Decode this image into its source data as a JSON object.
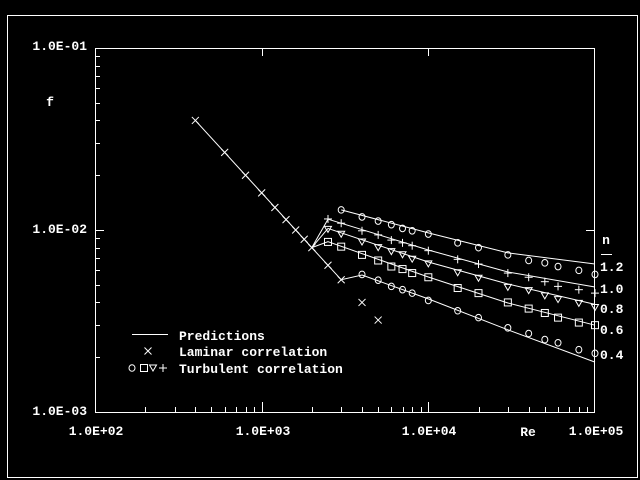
{
  "chart_data": {
    "type": "line",
    "xscale": "log",
    "yscale": "log",
    "xlim": [
      100,
      100000
    ],
    "ylim": [
      0.001,
      0.1
    ],
    "xlabel": "Re",
    "ylabel": "f",
    "x_tick_labels": [
      "1.0E+02",
      "1.0E+03",
      "1.0E+04",
      "1.0E+05"
    ],
    "y_tick_labels": [
      "1.0E-01",
      "1.0E-02",
      "1.0E-03"
    ],
    "grid": false,
    "background": "#000000",
    "foreground": "#ffffff",
    "legend": {
      "placement": "bottom-left",
      "entries": [
        {
          "symbol": "line",
          "label": "Predictions"
        },
        {
          "symbol": "cross",
          "label": "Laminar correlation"
        },
        {
          "symbol": "circle square diamond plus",
          "label": "Turbulent correlation"
        }
      ]
    },
    "curve_labels": {
      "title": "n",
      "labels": [
        "1.2",
        "1.0",
        "0.8",
        "0.6",
        "0.4"
      ]
    },
    "laminar_correlation": {
      "marker": "cross",
      "x": [
        400,
        600,
        800,
        1000,
        1200,
        1400,
        1600,
        1800,
        2000,
        2500,
        3000,
        4000,
        5000
      ],
      "y": [
        0.04,
        0.0267,
        0.02,
        0.016,
        0.0133,
        0.0114,
        0.01,
        0.0089,
        0.008,
        0.0064,
        0.00533,
        0.004,
        0.0032
      ]
    },
    "predictions": [
      {
        "n": "laminar",
        "x": [
          400,
          2000
        ],
        "y": [
          0.04,
          0.008
        ]
      },
      {
        "n": "1.2",
        "x": [
          3000,
          10000,
          30000,
          100000
        ],
        "y": [
          0.0129,
          0.00964,
          0.00748,
          0.0065
        ]
      },
      {
        "n": "1.0",
        "x": [
          2000,
          2500,
          10000,
          30000,
          100000
        ],
        "y": [
          0.008,
          0.01146,
          0.00776,
          0.00588,
          0.00486
        ]
      },
      {
        "n": "0.8",
        "x": [
          2000,
          2500,
          10000,
          30000,
          100000
        ],
        "y": [
          0.008,
          0.0102,
          0.00667,
          0.00505,
          0.0039
        ]
      },
      {
        "n": "0.6",
        "x": [
          2000,
          2500,
          10000,
          30000,
          100000
        ],
        "y": [
          0.008,
          0.00863,
          0.00552,
          0.00397,
          0.003
        ]
      },
      {
        "n": "0.4",
        "x": [
          2000,
          2500,
          3000,
          4000,
          10000,
          30000,
          100000
        ],
        "y": [
          0.008,
          0.0064,
          0.00533,
          0.00566,
          0.00418,
          0.00283,
          0.00188
        ]
      }
    ],
    "turbulent_correlation": [
      {
        "n": "1.2",
        "marker": "circle",
        "x": [
          3000,
          4000,
          5000,
          6000,
          7000,
          8000,
          10000,
          15000,
          20000,
          30000,
          40000,
          50000,
          60000,
          80000,
          100000
        ],
        "y": [
          0.0129,
          0.0118,
          0.0112,
          0.0107,
          0.0102,
          0.0099,
          0.0095,
          0.0085,
          0.008,
          0.0073,
          0.0068,
          0.0066,
          0.0063,
          0.006,
          0.0057
        ]
      },
      {
        "n": "1.0",
        "marker": "plus",
        "x": [
          2500,
          3000,
          4000,
          5000,
          6000,
          7000,
          8000,
          10000,
          15000,
          20000,
          30000,
          40000,
          50000,
          60000,
          80000,
          100000
        ],
        "y": [
          0.0115,
          0.0109,
          0.0099,
          0.0094,
          0.0088,
          0.0085,
          0.0082,
          0.0077,
          0.0069,
          0.0065,
          0.0058,
          0.0055,
          0.0052,
          0.0049,
          0.0047,
          0.0045
        ]
      },
      {
        "n": "0.8",
        "marker": "diamond",
        "x": [
          2500,
          3000,
          4000,
          5000,
          6000,
          7000,
          8000,
          10000,
          15000,
          20000,
          30000,
          40000,
          50000,
          60000,
          80000,
          100000
        ],
        "y": [
          0.0102,
          0.0096,
          0.0087,
          0.0081,
          0.0077,
          0.0074,
          0.007,
          0.0066,
          0.0059,
          0.0055,
          0.0049,
          0.0047,
          0.0044,
          0.0042,
          0.004,
          0.0038
        ]
      },
      {
        "n": "0.6",
        "marker": "square",
        "x": [
          2500,
          3000,
          4000,
          5000,
          6000,
          7000,
          8000,
          10000,
          15000,
          20000,
          30000,
          40000,
          50000,
          60000,
          80000,
          100000
        ],
        "y": [
          0.0086,
          0.0081,
          0.0073,
          0.0068,
          0.0063,
          0.0061,
          0.0058,
          0.0055,
          0.0048,
          0.0045,
          0.004,
          0.0037,
          0.0035,
          0.0033,
          0.0031,
          0.003
        ]
      },
      {
        "n": "0.4",
        "marker": "circle",
        "x": [
          4000,
          5000,
          6000,
          7000,
          8000,
          10000,
          15000,
          20000,
          30000,
          40000,
          50000,
          60000,
          80000,
          100000
        ],
        "y": [
          0.0057,
          0.0053,
          0.0049,
          0.0047,
          0.0045,
          0.0041,
          0.0036,
          0.0033,
          0.0029,
          0.0027,
          0.0025,
          0.0024,
          0.0022,
          0.0021
        ]
      }
    ]
  }
}
